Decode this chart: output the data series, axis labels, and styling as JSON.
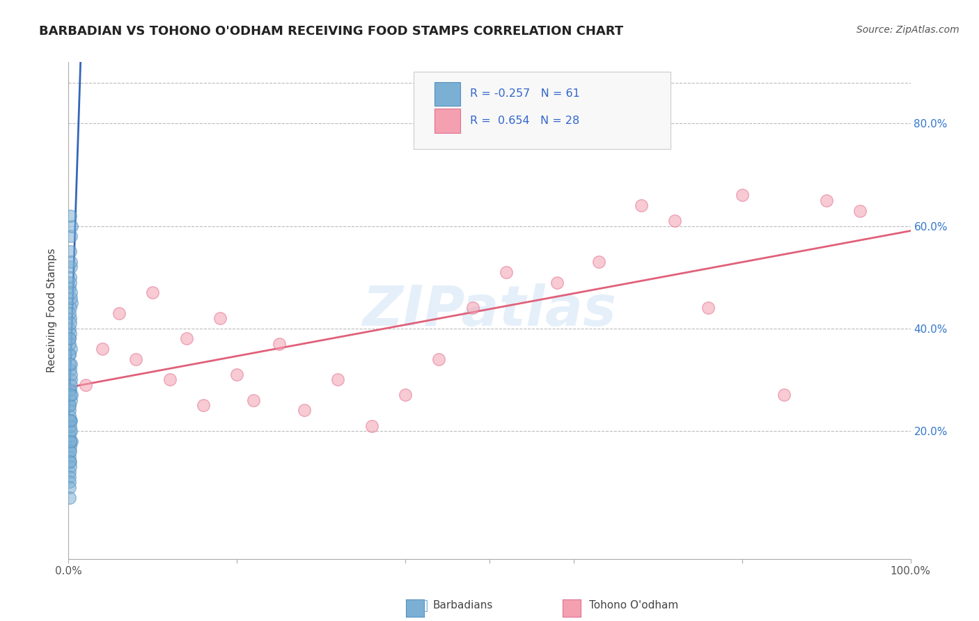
{
  "title": "BARBADIAN VS TOHONO O'ODHAM RECEIVING FOOD STAMPS CORRELATION CHART",
  "source": "Source: ZipAtlas.com",
  "ylabel": "Receiving Food Stamps",
  "legend_label1": "Barbadians",
  "legend_label2": "Tohono O'odham",
  "R1": -0.257,
  "N1": 61,
  "R2": 0.654,
  "N2": 28,
  "color1": "#7BAFD4",
  "color2": "#F4A0B0",
  "color1_edge": "#5590C0",
  "color2_edge": "#E07090",
  "line_color1": "#3366BB",
  "line_color2": "#E0607A",
  "background_color": "#FFFFFF",
  "grid_color": "#BBBBBB",
  "xlim": [
    0.0,
    1.0
  ],
  "ylim": [
    -0.05,
    0.92
  ],
  "plot_ylim": [
    0.0,
    0.92
  ],
  "xtick_positions": [
    0.0,
    1.0
  ],
  "xticklabels": [
    "0.0%",
    "100.0%"
  ],
  "ytick_positions": [
    0.2,
    0.4,
    0.6,
    0.8
  ],
  "yticklabels_right": [
    "20.0%",
    "40.0%",
    "60.0%",
    "80.0%"
  ],
  "watermark": "ZIPatlas",
  "barbadian_x": [
    0.001,
    0.002,
    0.001,
    0.003,
    0.002,
    0.001,
    0.004,
    0.002,
    0.001,
    0.003,
    0.001,
    0.002,
    0.003,
    0.001,
    0.002,
    0.004,
    0.001,
    0.002,
    0.003,
    0.001,
    0.002,
    0.001,
    0.003,
    0.002,
    0.001,
    0.004,
    0.002,
    0.001,
    0.003,
    0.002,
    0.001,
    0.002,
    0.001,
    0.003,
    0.002,
    0.001,
    0.002,
    0.003,
    0.001,
    0.002,
    0.003,
    0.001,
    0.002,
    0.001,
    0.003,
    0.002,
    0.001,
    0.002,
    0.003,
    0.001,
    0.004,
    0.002,
    0.001,
    0.003,
    0.002,
    0.001,
    0.002,
    0.001,
    0.003,
    0.002,
    0.001
  ],
  "barbadian_y": [
    0.28,
    0.32,
    0.25,
    0.3,
    0.22,
    0.35,
    0.18,
    0.42,
    0.38,
    0.26,
    0.15,
    0.2,
    0.33,
    0.4,
    0.17,
    0.45,
    0.12,
    0.28,
    0.36,
    0.24,
    0.5,
    0.19,
    0.31,
    0.44,
    0.16,
    0.27,
    0.39,
    0.48,
    0.22,
    0.14,
    0.35,
    0.21,
    0.43,
    0.52,
    0.13,
    0.37,
    0.18,
    0.46,
    0.23,
    0.55,
    0.29,
    0.11,
    0.41,
    0.25,
    0.58,
    0.16,
    0.33,
    0.49,
    0.2,
    0.1,
    0.6,
    0.27,
    0.14,
    0.53,
    0.22,
    0.38,
    0.62,
    0.09,
    0.47,
    0.18,
    0.07
  ],
  "tohono_x": [
    0.02,
    0.04,
    0.06,
    0.08,
    0.1,
    0.12,
    0.14,
    0.16,
    0.18,
    0.2,
    0.22,
    0.25,
    0.28,
    0.32,
    0.36,
    0.4,
    0.44,
    0.48,
    0.52,
    0.58,
    0.63,
    0.68,
    0.72,
    0.76,
    0.8,
    0.85,
    0.9,
    0.94
  ],
  "tohono_y": [
    0.29,
    0.36,
    0.43,
    0.34,
    0.47,
    0.3,
    0.38,
    0.25,
    0.42,
    0.31,
    0.26,
    0.37,
    0.24,
    0.3,
    0.21,
    0.27,
    0.34,
    0.44,
    0.51,
    0.49,
    0.53,
    0.64,
    0.61,
    0.44,
    0.66,
    0.27,
    0.65,
    0.63
  ]
}
